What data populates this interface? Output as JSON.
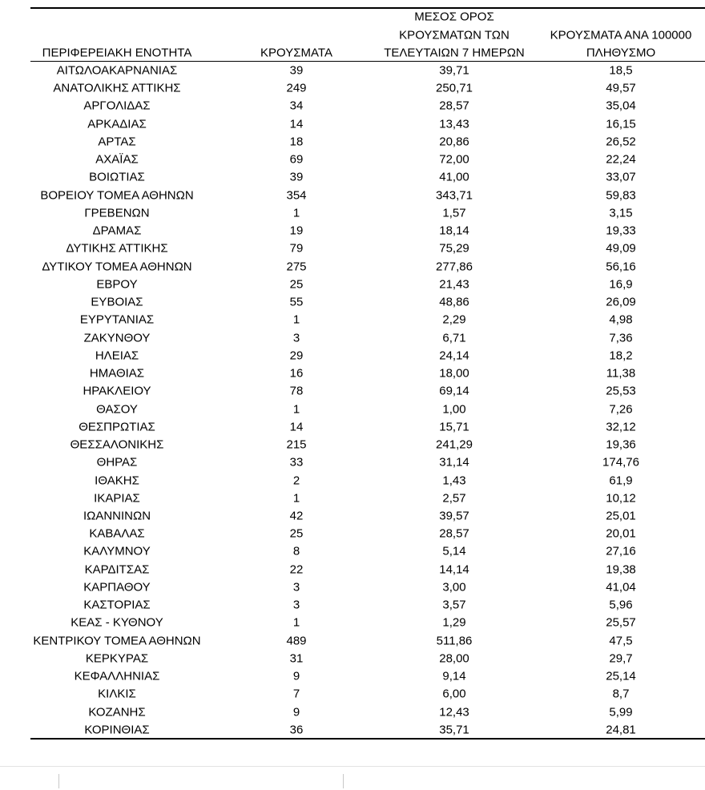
{
  "table": {
    "header": [
      [
        "ΠΕΡΙΦΕΡΕΙΑΚΗ ΕΝΟΤΗΤΑ"
      ],
      [
        "ΚΡΟΥΣΜΑΤΑ"
      ],
      [
        "ΜΕΣΟΣ ΟΡΟΣ",
        "ΚΡΟΥΣΜΑΤΩΝ ΤΩΝ",
        "ΤΕΛΕΥΤΑΙΩΝ 7 ΗΜΕΡΩΝ"
      ],
      [
        "ΚΡΟΥΣΜΑΤΑ ΑΝΑ 100000",
        "ΠΛΗΘΥΣΜΟ"
      ]
    ],
    "rows": [
      [
        "ΑΙΤΩΛΟΑΚΑΡΝΑΝΙΑΣ",
        "39",
        "39,71",
        "18,5"
      ],
      [
        "ΑΝΑΤΟΛΙΚΗΣ ΑΤΤΙΚΗΣ",
        "249",
        "250,71",
        "49,57"
      ],
      [
        "ΑΡΓΟΛΙΔΑΣ",
        "34",
        "28,57",
        "35,04"
      ],
      [
        "ΑΡΚΑΔΙΑΣ",
        "14",
        "13,43",
        "16,15"
      ],
      [
        "ΑΡΤΑΣ",
        "18",
        "20,86",
        "26,52"
      ],
      [
        "ΑΧΑΪΑΣ",
        "69",
        "72,00",
        "22,24"
      ],
      [
        "ΒΟΙΩΤΙΑΣ",
        "39",
        "41,00",
        "33,07"
      ],
      [
        "ΒΟΡΕΙΟΥ ΤΟΜΕΑ ΑΘΗΝΩΝ",
        "354",
        "343,71",
        "59,83"
      ],
      [
        "ΓΡΕΒΕΝΩΝ",
        "1",
        "1,57",
        "3,15"
      ],
      [
        "ΔΡΑΜΑΣ",
        "19",
        "18,14",
        "19,33"
      ],
      [
        "ΔΥΤΙΚΗΣ ΑΤΤΙΚΗΣ",
        "79",
        "75,29",
        "49,09"
      ],
      [
        "ΔΥΤΙΚΟΥ ΤΟΜΕΑ ΑΘΗΝΩΝ",
        "275",
        "277,86",
        "56,16"
      ],
      [
        "ΕΒΡΟΥ",
        "25",
        "21,43",
        "16,9"
      ],
      [
        "ΕΥΒΟΙΑΣ",
        "55",
        "48,86",
        "26,09"
      ],
      [
        "ΕΥΡΥΤΑΝΙΑΣ",
        "1",
        "2,29",
        "4,98"
      ],
      [
        "ΖΑΚΥΝΘΟΥ",
        "3",
        "6,71",
        "7,36"
      ],
      [
        "ΗΛΕΙΑΣ",
        "29",
        "24,14",
        "18,2"
      ],
      [
        "ΗΜΑΘΙΑΣ",
        "16",
        "18,00",
        "11,38"
      ],
      [
        "ΗΡΑΚΛΕΙΟΥ",
        "78",
        "69,14",
        "25,53"
      ],
      [
        "ΘΑΣΟΥ",
        "1",
        "1,00",
        "7,26"
      ],
      [
        "ΘΕΣΠΡΩΤΙΑΣ",
        "14",
        "15,71",
        "32,12"
      ],
      [
        "ΘΕΣΣΑΛΟΝΙΚΗΣ",
        "215",
        "241,29",
        "19,36"
      ],
      [
        "ΘΗΡΑΣ",
        "33",
        "31,14",
        "174,76"
      ],
      [
        "ΙΘΑΚΗΣ",
        "2",
        "1,43",
        "61,9"
      ],
      [
        "ΙΚΑΡΙΑΣ",
        "1",
        "2,57",
        "10,12"
      ],
      [
        "ΙΩΑΝΝΙΝΩΝ",
        "42",
        "39,57",
        "25,01"
      ],
      [
        "ΚΑΒΑΛΑΣ",
        "25",
        "28,57",
        "20,01"
      ],
      [
        "ΚΑΛΥΜΝΟΥ",
        "8",
        "5,14",
        "27,16"
      ],
      [
        "ΚΑΡΔΙΤΣΑΣ",
        "22",
        "14,14",
        "19,38"
      ],
      [
        "ΚΑΡΠΑΘΟΥ",
        "3",
        "3,00",
        "41,04"
      ],
      [
        "ΚΑΣΤΟΡΙΑΣ",
        "3",
        "3,57",
        "5,96"
      ],
      [
        "ΚΕΑΣ - ΚΥΘΝΟΥ",
        "1",
        "1,29",
        "25,57"
      ],
      [
        "ΚΕΝΤΡΙΚΟΥ ΤΟΜΕΑ ΑΘΗΝΩΝ",
        "489",
        "511,86",
        "47,5"
      ],
      [
        "ΚΕΡΚΥΡΑΣ",
        "31",
        "28,00",
        "29,7"
      ],
      [
        "ΚΕΦΑΛΛΗΝΙΑΣ",
        "9",
        "9,14",
        "25,14"
      ],
      [
        "ΚΙΛΚΙΣ",
        "7",
        "6,00",
        "8,7"
      ],
      [
        "ΚΟΖΑΝΗΣ",
        "9",
        "12,43",
        "5,99"
      ],
      [
        "ΚΟΡΙΝΘΙΑΣ",
        "36",
        "35,71",
        "24,81"
      ]
    ]
  }
}
